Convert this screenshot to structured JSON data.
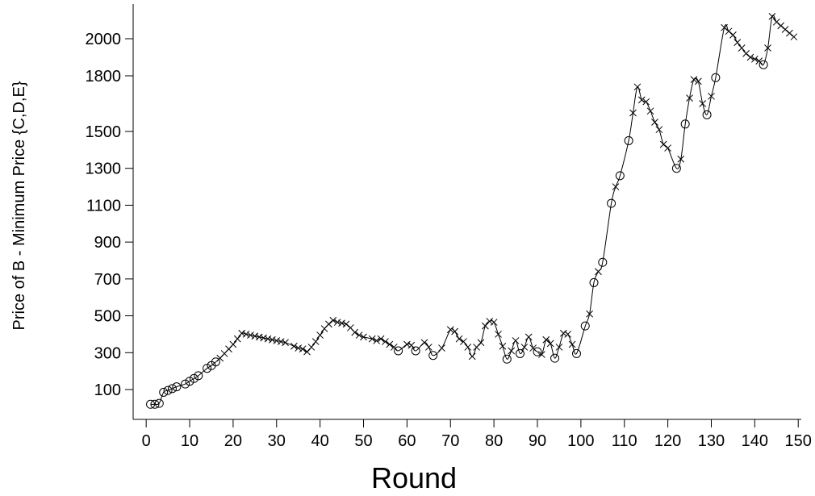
{
  "chart_data": {
    "type": "line",
    "xlabel": "Round",
    "ylabel": "Price of B - Minimum Price {C,D,E}",
    "xlim": [
      -3,
      152
    ],
    "ylim": [
      0,
      2200
    ],
    "x_ticks": [
      0,
      10,
      20,
      30,
      40,
      50,
      60,
      70,
      80,
      90,
      100,
      110,
      120,
      130,
      140,
      150
    ],
    "x_tick_labels": [
      "0",
      "10",
      "20",
      "30",
      "40",
      "50",
      "60",
      "70",
      "80",
      "90",
      "100",
      "110",
      "120",
      "130",
      "140",
      "150"
    ],
    "y_ticks": [
      100,
      300,
      500,
      700,
      900,
      1100,
      1300,
      1500,
      1800,
      2000
    ],
    "y_tick_labels": [
      "100",
      "300",
      "500",
      "700",
      "900",
      "1100",
      "1300",
      "1500",
      "1800",
      "2000"
    ],
    "grid": false,
    "series": [
      {
        "marker_legend": {
          "o": "circle",
          "x": "cross"
        },
        "points": [
          [
            1,
            20,
            "o"
          ],
          [
            2,
            20,
            "o"
          ],
          [
            3,
            25,
            "o"
          ],
          [
            4,
            85,
            "o"
          ],
          [
            5,
            95,
            "o"
          ],
          [
            6,
            105,
            "o"
          ],
          [
            7,
            115,
            "o"
          ],
          [
            9,
            130,
            "o"
          ],
          [
            10,
            145,
            "o"
          ],
          [
            11,
            160,
            "o"
          ],
          [
            12,
            175,
            "o"
          ],
          [
            14,
            215,
            "o"
          ],
          [
            15,
            230,
            "o"
          ],
          [
            16,
            250,
            "o"
          ],
          [
            17,
            270,
            "x"
          ],
          [
            18,
            295,
            "x"
          ],
          [
            19,
            320,
            "x"
          ],
          [
            20,
            345,
            "x"
          ],
          [
            21,
            375,
            "x"
          ],
          [
            22,
            405,
            "x"
          ],
          [
            23,
            400,
            "x"
          ],
          [
            24,
            395,
            "x"
          ],
          [
            25,
            390,
            "x"
          ],
          [
            26,
            385,
            "x"
          ],
          [
            27,
            380,
            "x"
          ],
          [
            28,
            375,
            "x"
          ],
          [
            29,
            370,
            "x"
          ],
          [
            30,
            365,
            "x"
          ],
          [
            31,
            360,
            "x"
          ],
          [
            32,
            355,
            "x"
          ],
          [
            34,
            335,
            "x"
          ],
          [
            35,
            325,
            "x"
          ],
          [
            36,
            320,
            "x"
          ],
          [
            37,
            305,
            "x"
          ],
          [
            38,
            330,
            "x"
          ],
          [
            39,
            360,
            "x"
          ],
          [
            40,
            395,
            "x"
          ],
          [
            41,
            430,
            "x"
          ],
          [
            42,
            455,
            "x"
          ],
          [
            43,
            475,
            "x"
          ],
          [
            44,
            465,
            "x"
          ],
          [
            45,
            460,
            "x"
          ],
          [
            46,
            455,
            "x"
          ],
          [
            47,
            435,
            "x"
          ],
          [
            48,
            410,
            "x"
          ],
          [
            49,
            395,
            "x"
          ],
          [
            50,
            385,
            "x"
          ],
          [
            52,
            375,
            "x"
          ],
          [
            53,
            365,
            "x"
          ],
          [
            54,
            375,
            "x"
          ],
          [
            55,
            360,
            "x"
          ],
          [
            56,
            345,
            "x"
          ],
          [
            57,
            330,
            "x"
          ],
          [
            58,
            310,
            "o"
          ],
          [
            60,
            345,
            "x"
          ],
          [
            61,
            340,
            "x"
          ],
          [
            62,
            310,
            "o"
          ],
          [
            64,
            355,
            "x"
          ],
          [
            65,
            330,
            "x"
          ],
          [
            66,
            285,
            "o"
          ],
          [
            68,
            325,
            "x"
          ],
          [
            70,
            425,
            "x"
          ],
          [
            71,
            415,
            "x"
          ],
          [
            72,
            375,
            "x"
          ],
          [
            73,
            360,
            "x"
          ],
          [
            74,
            330,
            "x"
          ],
          [
            75,
            280,
            "x"
          ],
          [
            76,
            330,
            "x"
          ],
          [
            77,
            355,
            "x"
          ],
          [
            78,
            445,
            "x"
          ],
          [
            79,
            470,
            "x"
          ],
          [
            80,
            465,
            "x"
          ],
          [
            81,
            400,
            "x"
          ],
          [
            82,
            335,
            "x"
          ],
          [
            83,
            265,
            "o"
          ],
          [
            84,
            310,
            "x"
          ],
          [
            85,
            365,
            "x"
          ],
          [
            86,
            295,
            "o"
          ],
          [
            87,
            330,
            "x"
          ],
          [
            88,
            385,
            "x"
          ],
          [
            89,
            325,
            "x"
          ],
          [
            90,
            305,
            "o"
          ],
          [
            91,
            290,
            "x"
          ],
          [
            92,
            370,
            "x"
          ],
          [
            93,
            350,
            "x"
          ],
          [
            94,
            270,
            "o"
          ],
          [
            95,
            330,
            "x"
          ],
          [
            96,
            405,
            "x"
          ],
          [
            97,
            400,
            "x"
          ],
          [
            98,
            345,
            "x"
          ],
          [
            99,
            295,
            "o"
          ],
          [
            101,
            445,
            "o"
          ],
          [
            102,
            510,
            "x"
          ],
          [
            103,
            680,
            "o"
          ],
          [
            104,
            740,
            "x"
          ],
          [
            105,
            790,
            "o"
          ],
          [
            107,
            1110,
            "o"
          ],
          [
            108,
            1200,
            "x"
          ],
          [
            109,
            1260,
            "o"
          ],
          [
            111,
            1450,
            "o"
          ],
          [
            112,
            1600,
            "x"
          ],
          [
            113,
            1740,
            "x"
          ],
          [
            114,
            1670,
            "x"
          ],
          [
            115,
            1660,
            "x"
          ],
          [
            116,
            1610,
            "x"
          ],
          [
            117,
            1550,
            "x"
          ],
          [
            118,
            1510,
            "x"
          ],
          [
            119,
            1430,
            "x"
          ],
          [
            120,
            1410,
            "x"
          ],
          [
            122,
            1300,
            "o"
          ],
          [
            123,
            1350,
            "x"
          ],
          [
            124,
            1540,
            "o"
          ],
          [
            125,
            1680,
            "x"
          ],
          [
            126,
            1780,
            "x"
          ],
          [
            127,
            1770,
            "x"
          ],
          [
            128,
            1650,
            "x"
          ],
          [
            129,
            1590,
            "o"
          ],
          [
            130,
            1690,
            "x"
          ],
          [
            131,
            1790,
            "o"
          ],
          [
            133,
            2060,
            "x"
          ],
          [
            134,
            2040,
            "x"
          ],
          [
            135,
            2020,
            "x"
          ],
          [
            136,
            1980,
            "x"
          ],
          [
            137,
            1950,
            "x"
          ],
          [
            138,
            1920,
            "x"
          ],
          [
            139,
            1900,
            "x"
          ],
          [
            140,
            1890,
            "x"
          ],
          [
            141,
            1880,
            "x"
          ],
          [
            142,
            1860,
            "o"
          ],
          [
            143,
            1950,
            "x"
          ],
          [
            144,
            2120,
            "x"
          ],
          [
            145,
            2090,
            "x"
          ],
          [
            146,
            2070,
            "x"
          ],
          [
            147,
            2050,
            "x"
          ],
          [
            148,
            2030,
            "x"
          ],
          [
            149,
            2010,
            "x"
          ]
        ]
      }
    ]
  }
}
